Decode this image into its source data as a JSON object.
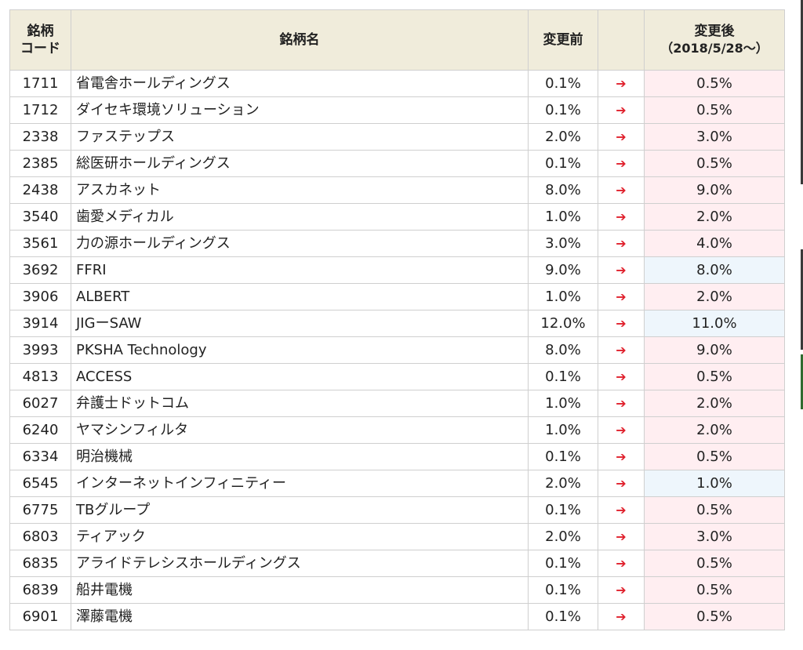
{
  "table": {
    "headers": {
      "code": "銘柄\nコード",
      "code_line1": "銘柄",
      "code_line2": "コード",
      "name": "銘柄名",
      "before": "変更前",
      "arrow": "",
      "after_line1": "変更後",
      "after_line2": "（2018/5/28～）"
    },
    "arrow_glyph": "➔",
    "rows": [
      {
        "code": "1711",
        "name": "省電舎ホールディングス",
        "before": "0.1%",
        "after": "0.5%",
        "trend": "up"
      },
      {
        "code": "1712",
        "name": "ダイセキ環境ソリューション",
        "before": "0.1%",
        "after": "0.5%",
        "trend": "up"
      },
      {
        "code": "2338",
        "name": "ファステップス",
        "before": "2.0%",
        "after": "3.0%",
        "trend": "up"
      },
      {
        "code": "2385",
        "name": "総医研ホールディングス",
        "before": "0.1%",
        "after": "0.5%",
        "trend": "up"
      },
      {
        "code": "2438",
        "name": "アスカネット",
        "before": "8.0%",
        "after": "9.0%",
        "trend": "up"
      },
      {
        "code": "3540",
        "name": "歯愛メディカル",
        "before": "1.0%",
        "after": "2.0%",
        "trend": "up"
      },
      {
        "code": "3561",
        "name": "力の源ホールディングス",
        "before": "3.0%",
        "after": "4.0%",
        "trend": "up"
      },
      {
        "code": "3692",
        "name": "FFRI",
        "before": "9.0%",
        "after": "8.0%",
        "trend": "down"
      },
      {
        "code": "3906",
        "name": "ALBERT",
        "before": "1.0%",
        "after": "2.0%",
        "trend": "up"
      },
      {
        "code": "3914",
        "name": "JIGーSAW",
        "before": "12.0%",
        "after": "11.0%",
        "trend": "down"
      },
      {
        "code": "3993",
        "name": "PKSHA Technology",
        "before": "8.0%",
        "after": "9.0%",
        "trend": "up"
      },
      {
        "code": "4813",
        "name": "ACCESS",
        "before": "0.1%",
        "after": "0.5%",
        "trend": "up"
      },
      {
        "code": "6027",
        "name": "弁護士ドットコム",
        "before": "1.0%",
        "after": "2.0%",
        "trend": "up"
      },
      {
        "code": "6240",
        "name": "ヤマシンフィルタ",
        "before": "1.0%",
        "after": "2.0%",
        "trend": "up"
      },
      {
        "code": "6334",
        "name": "明治機械",
        "before": "0.1%",
        "after": "0.5%",
        "trend": "up"
      },
      {
        "code": "6545",
        "name": "インターネットインフィニティー",
        "before": "2.0%",
        "after": "1.0%",
        "trend": "down"
      },
      {
        "code": "6775",
        "name": "TBグループ",
        "before": "0.1%",
        "after": "0.5%",
        "trend": "up"
      },
      {
        "code": "6803",
        "name": "ティアック",
        "before": "2.0%",
        "after": "3.0%",
        "trend": "up"
      },
      {
        "code": "6835",
        "name": "アライドテレシスホールディングス",
        "before": "0.1%",
        "after": "0.5%",
        "trend": "up"
      },
      {
        "code": "6839",
        "name": "船井電機",
        "before": "0.1%",
        "after": "0.5%",
        "trend": "up"
      },
      {
        "code": "6901",
        "name": "澤藤電機",
        "before": "0.1%",
        "after": "0.5%",
        "trend": "up"
      }
    ]
  },
  "colors": {
    "header_bg": "#f0ecdb",
    "up_bg": "#ffeef1",
    "down_bg": "#eef6fc",
    "arrow": "#e0202c",
    "border": "#cfcfcf"
  }
}
